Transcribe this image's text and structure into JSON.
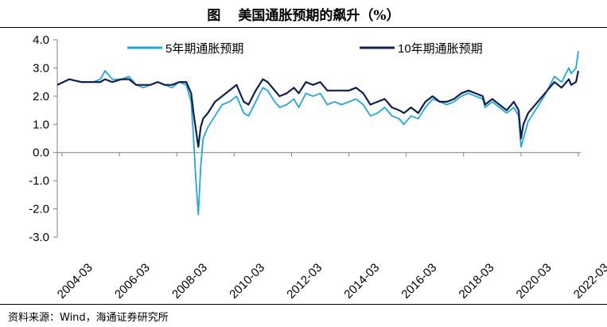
{
  "header": {
    "figure_label": "图",
    "title": "美国通胀预期的飙升（%）"
  },
  "footer": {
    "source": "资料来源：Wind，海通证券研究所"
  },
  "colors": {
    "series_5y": "#1ea8e0",
    "series_10y": "#10204f",
    "axis": "#808080"
  },
  "chart_data": {
    "type": "line",
    "title": "美国通胀预期的飙升（%）",
    "xlabel": "",
    "ylabel": "",
    "ylim": [
      -3.0,
      4.0
    ],
    "yticks": [
      "4.0",
      "3.0",
      "2.0",
      "1.0",
      "0.0",
      "-1.0",
      "-2.0",
      "-3.0"
    ],
    "xlim": [
      "2004-01",
      "2022-04"
    ],
    "xticks": [
      "2004-03",
      "2006-03",
      "2008-03",
      "2010-03",
      "2012-03",
      "2014-03",
      "2016-03",
      "2018-03",
      "2020-03",
      "2022-03"
    ],
    "grid": false,
    "legend_position": "top",
    "series": [
      {
        "name": "5年期通胀预期",
        "points": [
          [
            "2004-01",
            2.4
          ],
          [
            "2004-06",
            2.6
          ],
          [
            "2004-11",
            2.5
          ],
          [
            "2005-04",
            2.5
          ],
          [
            "2005-07",
            2.6
          ],
          [
            "2005-09",
            2.9
          ],
          [
            "2005-12",
            2.6
          ],
          [
            "2006-04",
            2.6
          ],
          [
            "2006-07",
            2.7
          ],
          [
            "2006-10",
            2.4
          ],
          [
            "2007-01",
            2.3
          ],
          [
            "2007-04",
            2.4
          ],
          [
            "2007-07",
            2.5
          ],
          [
            "2007-10",
            2.4
          ],
          [
            "2008-01",
            2.3
          ],
          [
            "2008-04",
            2.5
          ],
          [
            "2008-07",
            2.4
          ],
          [
            "2008-09",
            1.8
          ],
          [
            "2008-10",
            0.5
          ],
          [
            "2008-11",
            -1.0
          ],
          [
            "2008-12",
            -2.2
          ],
          [
            "2009-01",
            -0.5
          ],
          [
            "2009-02",
            0.5
          ],
          [
            "2009-04",
            0.9
          ],
          [
            "2009-07",
            1.3
          ],
          [
            "2009-10",
            1.7
          ],
          [
            "2010-01",
            1.8
          ],
          [
            "2010-04",
            2.0
          ],
          [
            "2010-07",
            1.4
          ],
          [
            "2010-09",
            1.3
          ],
          [
            "2010-12",
            1.8
          ],
          [
            "2011-03",
            2.3
          ],
          [
            "2011-05",
            2.2
          ],
          [
            "2011-08",
            1.8
          ],
          [
            "2011-10",
            1.6
          ],
          [
            "2012-01",
            1.7
          ],
          [
            "2012-04",
            1.9
          ],
          [
            "2012-06",
            1.6
          ],
          [
            "2012-09",
            2.1
          ],
          [
            "2012-12",
            2.0
          ],
          [
            "2013-03",
            2.1
          ],
          [
            "2013-06",
            1.7
          ],
          [
            "2013-09",
            1.8
          ],
          [
            "2013-12",
            1.7
          ],
          [
            "2014-03",
            1.8
          ],
          [
            "2014-06",
            1.9
          ],
          [
            "2014-09",
            1.7
          ],
          [
            "2014-12",
            1.3
          ],
          [
            "2015-03",
            1.4
          ],
          [
            "2015-06",
            1.6
          ],
          [
            "2015-09",
            1.3
          ],
          [
            "2015-12",
            1.2
          ],
          [
            "2016-02",
            1.0
          ],
          [
            "2016-05",
            1.3
          ],
          [
            "2016-08",
            1.2
          ],
          [
            "2016-11",
            1.6
          ],
          [
            "2017-02",
            1.9
          ],
          [
            "2017-05",
            1.8
          ],
          [
            "2017-08",
            1.7
          ],
          [
            "2017-11",
            1.8
          ],
          [
            "2018-02",
            2.0
          ],
          [
            "2018-05",
            2.1
          ],
          [
            "2018-08",
            2.0
          ],
          [
            "2018-11",
            1.9
          ],
          [
            "2018-12",
            1.6
          ],
          [
            "2019-03",
            1.8
          ],
          [
            "2019-06",
            1.6
          ],
          [
            "2019-09",
            1.4
          ],
          [
            "2019-12",
            1.6
          ],
          [
            "2020-02",
            1.3
          ],
          [
            "2020-03",
            0.2
          ],
          [
            "2020-04",
            0.5
          ],
          [
            "2020-06",
            1.1
          ],
          [
            "2020-09",
            1.5
          ],
          [
            "2020-12",
            1.9
          ],
          [
            "2021-02",
            2.2
          ],
          [
            "2021-05",
            2.7
          ],
          [
            "2021-08",
            2.5
          ],
          [
            "2021-11",
            3.0
          ],
          [
            "2021-12",
            2.8
          ],
          [
            "2022-02",
            3.0
          ],
          [
            "2022-03",
            3.6
          ]
        ]
      },
      {
        "name": "10年期通胀预期",
        "points": [
          [
            "2004-01",
            2.4
          ],
          [
            "2004-06",
            2.6
          ],
          [
            "2004-11",
            2.5
          ],
          [
            "2005-04",
            2.5
          ],
          [
            "2005-07",
            2.5
          ],
          [
            "2005-09",
            2.6
          ],
          [
            "2005-12",
            2.5
          ],
          [
            "2006-04",
            2.6
          ],
          [
            "2006-07",
            2.6
          ],
          [
            "2006-10",
            2.4
          ],
          [
            "2007-01",
            2.4
          ],
          [
            "2007-04",
            2.4
          ],
          [
            "2007-07",
            2.5
          ],
          [
            "2007-10",
            2.4
          ],
          [
            "2008-01",
            2.4
          ],
          [
            "2008-04",
            2.5
          ],
          [
            "2008-07",
            2.5
          ],
          [
            "2008-09",
            2.1
          ],
          [
            "2008-10",
            1.4
          ],
          [
            "2008-11",
            0.8
          ],
          [
            "2008-12",
            0.2
          ],
          [
            "2009-01",
            0.9
          ],
          [
            "2009-02",
            1.2
          ],
          [
            "2009-04",
            1.4
          ],
          [
            "2009-07",
            1.8
          ],
          [
            "2009-10",
            2.0
          ],
          [
            "2010-01",
            2.2
          ],
          [
            "2010-04",
            2.4
          ],
          [
            "2010-07",
            1.8
          ],
          [
            "2010-09",
            1.7
          ],
          [
            "2010-12",
            2.2
          ],
          [
            "2011-03",
            2.6
          ],
          [
            "2011-05",
            2.5
          ],
          [
            "2011-08",
            2.2
          ],
          [
            "2011-10",
            2.0
          ],
          [
            "2012-01",
            2.1
          ],
          [
            "2012-04",
            2.3
          ],
          [
            "2012-06",
            2.1
          ],
          [
            "2012-09",
            2.5
          ],
          [
            "2012-12",
            2.4
          ],
          [
            "2013-03",
            2.5
          ],
          [
            "2013-06",
            2.2
          ],
          [
            "2013-09",
            2.2
          ],
          [
            "2013-12",
            2.2
          ],
          [
            "2014-03",
            2.2
          ],
          [
            "2014-06",
            2.3
          ],
          [
            "2014-09",
            2.1
          ],
          [
            "2014-12",
            1.7
          ],
          [
            "2015-03",
            1.8
          ],
          [
            "2015-06",
            1.9
          ],
          [
            "2015-09",
            1.6
          ],
          [
            "2015-12",
            1.5
          ],
          [
            "2016-02",
            1.4
          ],
          [
            "2016-05",
            1.6
          ],
          [
            "2016-08",
            1.4
          ],
          [
            "2016-11",
            1.8
          ],
          [
            "2017-02",
            2.0
          ],
          [
            "2017-05",
            1.8
          ],
          [
            "2017-08",
            1.8
          ],
          [
            "2017-11",
            1.9
          ],
          [
            "2018-02",
            2.1
          ],
          [
            "2018-05",
            2.2
          ],
          [
            "2018-08",
            2.1
          ],
          [
            "2018-11",
            2.0
          ],
          [
            "2018-12",
            1.7
          ],
          [
            "2019-03",
            1.9
          ],
          [
            "2019-06",
            1.7
          ],
          [
            "2019-09",
            1.5
          ],
          [
            "2019-12",
            1.8
          ],
          [
            "2020-02",
            1.5
          ],
          [
            "2020-03",
            0.5
          ],
          [
            "2020-04",
            1.0
          ],
          [
            "2020-06",
            1.4
          ],
          [
            "2020-09",
            1.7
          ],
          [
            "2020-12",
            2.0
          ],
          [
            "2021-02",
            2.2
          ],
          [
            "2021-05",
            2.5
          ],
          [
            "2021-08",
            2.3
          ],
          [
            "2021-11",
            2.6
          ],
          [
            "2021-12",
            2.4
          ],
          [
            "2022-02",
            2.5
          ],
          [
            "2022-03",
            2.9
          ]
        ]
      }
    ]
  }
}
